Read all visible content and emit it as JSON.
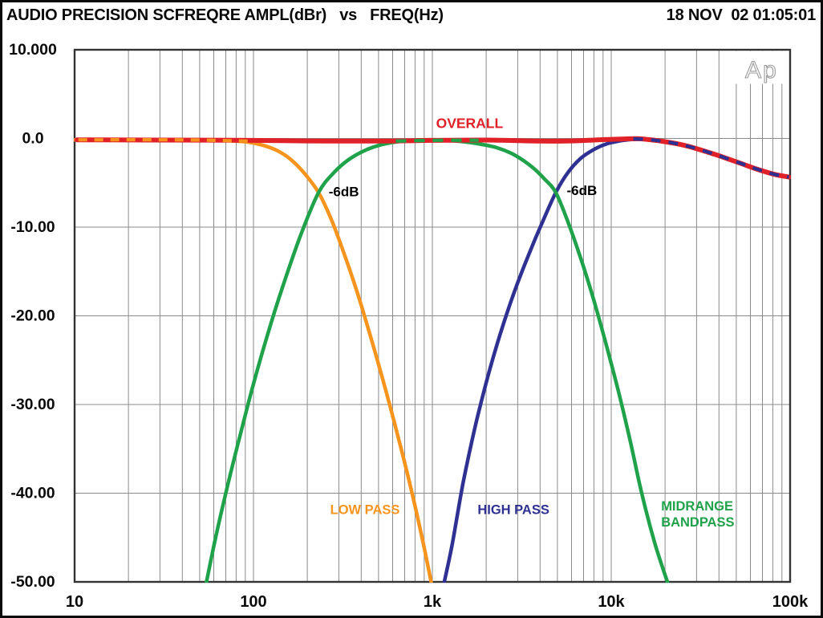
{
  "header": {
    "title": "AUDIO PRECISION SCFREQRE AMPL(dBr)   vs   FREQ(Hz)",
    "timestamp": "18 NOV  02 01:05:01"
  },
  "chart_data": {
    "type": "line",
    "title": "AUDIO PRECISION SCFREQRE AMPL(dBr) vs FREQ(Hz)",
    "timestamp": "18 NOV  02 01:05:01",
    "logo": "Ap",
    "x_axis": {
      "label": "FREQ(Hz)",
      "scale": "log",
      "min": 10,
      "max": 100000,
      "major_ticks": [
        10,
        100,
        1000,
        10000,
        100000
      ],
      "tick_labels": [
        "10",
        "100",
        "1k",
        "10k",
        "100k"
      ],
      "grid": true
    },
    "y_axis": {
      "label": "AMPL(dBr)",
      "min": -50,
      "max": 10,
      "tick_values": [
        10,
        0,
        -10,
        -20,
        -30,
        -40,
        -50
      ],
      "tick_labels": [
        "10.000",
        "0.0",
        "-10.00",
        "-20.00",
        "-30.00",
        "-40.00",
        "-50.00"
      ],
      "grid": true
    },
    "colors": {
      "overall": "#e02128",
      "low_pass": "#f7941e",
      "high_pass": "#2e3192",
      "midrange": "#1fa24a",
      "grid": "#8a8a8a",
      "plot_border": "#333333",
      "logo_gray": "#9b9b9b"
    },
    "series": [
      {
        "name": "LOW PASS",
        "color": "#f7941e",
        "width": 4.5,
        "points": [
          [
            10,
            -0.15
          ],
          [
            25,
            -0.15
          ],
          [
            45,
            -0.17
          ],
          [
            70,
            -0.25
          ],
          [
            92,
            -0.4
          ],
          [
            112,
            -0.75
          ],
          [
            135,
            -1.35
          ],
          [
            160,
            -2.3
          ],
          [
            192,
            -3.9
          ],
          [
            231,
            -6.1
          ],
          [
            272,
            -9.1
          ],
          [
            320,
            -12.9
          ],
          [
            378,
            -17.2
          ],
          [
            448,
            -22.1
          ],
          [
            532,
            -27.4
          ],
          [
            635,
            -33.2
          ],
          [
            760,
            -39.5
          ],
          [
            880,
            -45.2
          ],
          [
            985,
            -50
          ]
        ]
      },
      {
        "name": "HIGH PASS",
        "color": "#2e3192",
        "width": 4.5,
        "points": [
          [
            1166,
            -50
          ],
          [
            1290,
            -45.8
          ],
          [
            1490,
            -38.7
          ],
          [
            1740,
            -32.4
          ],
          [
            2040,
            -26.9
          ],
          [
            2400,
            -22
          ],
          [
            2860,
            -17.4
          ],
          [
            3440,
            -13.2
          ],
          [
            4130,
            -9.4
          ],
          [
            4900,
            -6.1
          ],
          [
            5700,
            -3.9
          ],
          [
            6700,
            -2.3
          ],
          [
            7900,
            -1.3
          ],
          [
            9300,
            -0.65
          ],
          [
            11000,
            -0.3
          ],
          [
            13000,
            -0.12
          ],
          [
            15000,
            -0.1
          ],
          [
            18000,
            -0.28
          ],
          [
            23000,
            -0.6
          ],
          [
            30000,
            -1.15
          ],
          [
            40000,
            -1.95
          ],
          [
            52000,
            -2.75
          ],
          [
            65000,
            -3.45
          ],
          [
            82000,
            -4.05
          ],
          [
            100000,
            -4.4
          ]
        ]
      },
      {
        "name": "MIDRANGE BANDPASS",
        "color": "#1fa24a",
        "width": 4.5,
        "points": [
          [
            54.6,
            -50
          ],
          [
            61,
            -45.3
          ],
          [
            70,
            -40
          ],
          [
            81,
            -34.8
          ],
          [
            94,
            -29.7
          ],
          [
            110,
            -24.7
          ],
          [
            130,
            -19.8
          ],
          [
            155,
            -15.1
          ],
          [
            186,
            -10.6
          ],
          [
            231,
            -6.1
          ],
          [
            280,
            -3.9
          ],
          [
            340,
            -2.4
          ],
          [
            420,
            -1.35
          ],
          [
            520,
            -0.7
          ],
          [
            650,
            -0.35
          ],
          [
            820,
            -0.18
          ],
          [
            1050,
            -0.15
          ],
          [
            1350,
            -0.28
          ],
          [
            1750,
            -0.55
          ],
          [
            2300,
            -1.05
          ],
          [
            2900,
            -1.9
          ],
          [
            3600,
            -3.2
          ],
          [
            4250,
            -4.6
          ],
          [
            4900,
            -6.1
          ],
          [
            5700,
            -9.3
          ],
          [
            6700,
            -13.3
          ],
          [
            7900,
            -17.9
          ],
          [
            9300,
            -23
          ],
          [
            11000,
            -28.6
          ],
          [
            12800,
            -34.2
          ],
          [
            14800,
            -40
          ],
          [
            17500,
            -45.6
          ],
          [
            20600,
            -50
          ]
        ]
      },
      {
        "name": "OVERALL",
        "color": "#e02128",
        "width": 6,
        "points": [
          [
            10.3,
            -0.15
          ],
          [
            30,
            -0.18
          ],
          [
            80,
            -0.2
          ],
          [
            200,
            -0.28
          ],
          [
            500,
            -0.3
          ],
          [
            1000,
            -0.22
          ],
          [
            2000,
            -0.18
          ],
          [
            4000,
            -0.3
          ],
          [
            6000,
            -0.28
          ],
          [
            8000,
            -0.18
          ],
          [
            10000,
            -0.1
          ],
          [
            12000,
            -0.05
          ],
          [
            14000,
            -0.03
          ],
          [
            16000,
            -0.12
          ],
          [
            19000,
            -0.3
          ],
          [
            24000,
            -0.65
          ],
          [
            30000,
            -1.15
          ],
          [
            40000,
            -1.95
          ],
          [
            52000,
            -2.75
          ],
          [
            65000,
            -3.45
          ],
          [
            82000,
            -4.05
          ],
          [
            98500,
            -4.35
          ]
        ]
      }
    ],
    "dashed_overlays": [
      {
        "name": "low-pass-coincident-with-overall",
        "color": "#f7941e",
        "width": 4.2,
        "dash": "11 9",
        "points": [
          [
            10.5,
            -0.15
          ],
          [
            40,
            -0.16
          ],
          [
            93,
            -0.3
          ]
        ]
      },
      {
        "name": "midrange-coincident-with-overall",
        "color": "#1fa24a",
        "width": 4.2,
        "dash": "13 10",
        "points": [
          [
            625,
            -0.3
          ],
          [
            1000,
            -0.22
          ],
          [
            1815,
            -0.2
          ]
        ]
      },
      {
        "name": "high-pass-coincident-with-overall",
        "color": "#2e3192",
        "width": 4.2,
        "dash": "12 10",
        "points": [
          [
            13300,
            -0.04
          ],
          [
            16000,
            -0.12
          ],
          [
            19000,
            -0.3
          ],
          [
            24000,
            -0.65
          ],
          [
            30000,
            -1.15
          ],
          [
            40000,
            -1.95
          ],
          [
            52000,
            -2.75
          ],
          [
            65000,
            -3.45
          ],
          [
            82000,
            -4.05
          ],
          [
            98500,
            -4.35
          ]
        ]
      }
    ],
    "annotations": [
      {
        "text": "OVERALL",
        "color": "#e02128",
        "f": 1615,
        "db": 1.7,
        "anchor": "middle",
        "size": 17.5
      },
      {
        "text": "-6dB",
        "color": "#000000",
        "f": 320,
        "db": -6.0,
        "anchor": "middle",
        "size": 17
      },
      {
        "text": "-6dB",
        "color": "#000000",
        "f": 6850,
        "db": -5.9,
        "anchor": "middle",
        "size": 17
      },
      {
        "text": "LOW PASS",
        "color": "#f7941e",
        "f": 420,
        "db": -41.9,
        "anchor": "middle",
        "size": 16.5
      },
      {
        "text": "HIGH PASS",
        "color": "#2e3192",
        "f": 2840,
        "db": -41.9,
        "anchor": "middle",
        "size": 16.5
      },
      {
        "text": "MIDRANGE",
        "color": "#1fa24a",
        "f": 19000,
        "db": -41.5,
        "anchor": "start",
        "size": 16.5
      },
      {
        "text": "BANDPASS",
        "color": "#1fa24a",
        "f": 19000,
        "db": -43.3,
        "anchor": "start",
        "size": 16.5
      }
    ]
  }
}
